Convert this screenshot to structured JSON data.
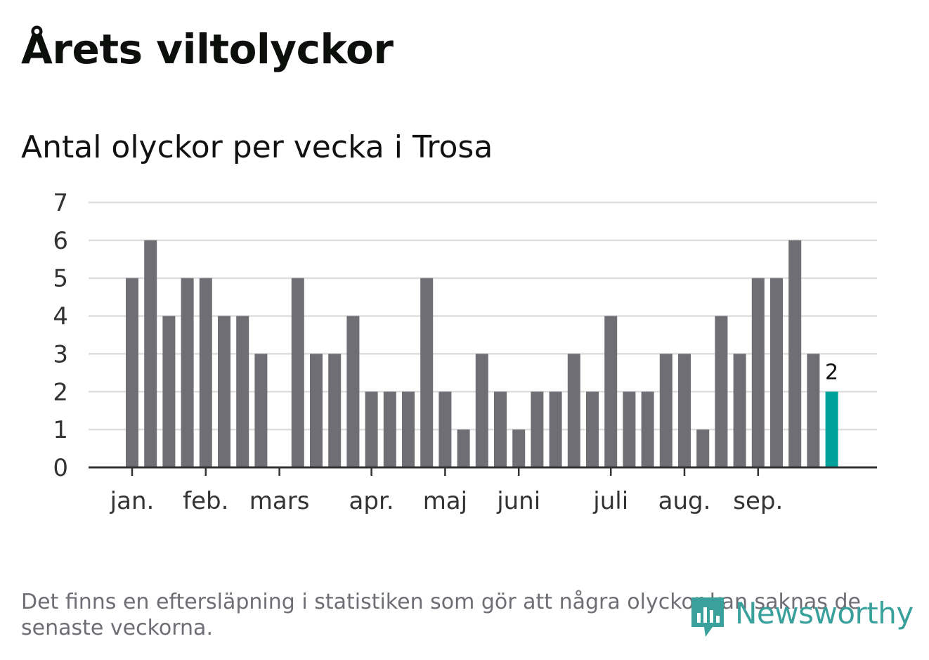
{
  "title": "Årets viltolyckor",
  "subtitle": "Antal olyckor per vecka i Trosa",
  "note": "Det finns en eftersläpning i statistiken som gör att några olyckor kan saknas de senaste veckorna.",
  "logo_text": "Newsworthy",
  "colors": {
    "bar": "#6f6e74",
    "highlight": "#00a19a",
    "grid": "#dedede",
    "axis": "#333333",
    "logo": "#3aa09c"
  },
  "chart_data": {
    "type": "bar",
    "title": "Antal olyckor per vecka i Trosa",
    "xlabel": "",
    "ylabel": "",
    "ylim": [
      0,
      7
    ],
    "yticks": [
      0,
      1,
      2,
      3,
      4,
      5,
      6,
      7
    ],
    "grid": true,
    "month_labels": [
      "jan.",
      "feb.",
      "mars",
      "apr.",
      "maj",
      "juni",
      "juli",
      "aug.",
      "sep."
    ],
    "month_label_week_index": [
      0,
      4,
      8,
      13,
      17,
      21,
      26,
      30,
      34
    ],
    "values": [
      5,
      6,
      4,
      5,
      5,
      4,
      4,
      3,
      0,
      5,
      3,
      3,
      4,
      2,
      2,
      2,
      5,
      2,
      1,
      3,
      2,
      1,
      2,
      2,
      3,
      2,
      4,
      2,
      2,
      3,
      3,
      1,
      4,
      3,
      5,
      5,
      6,
      3,
      2
    ],
    "highlight_index": 38,
    "highlight_label": "2"
  }
}
